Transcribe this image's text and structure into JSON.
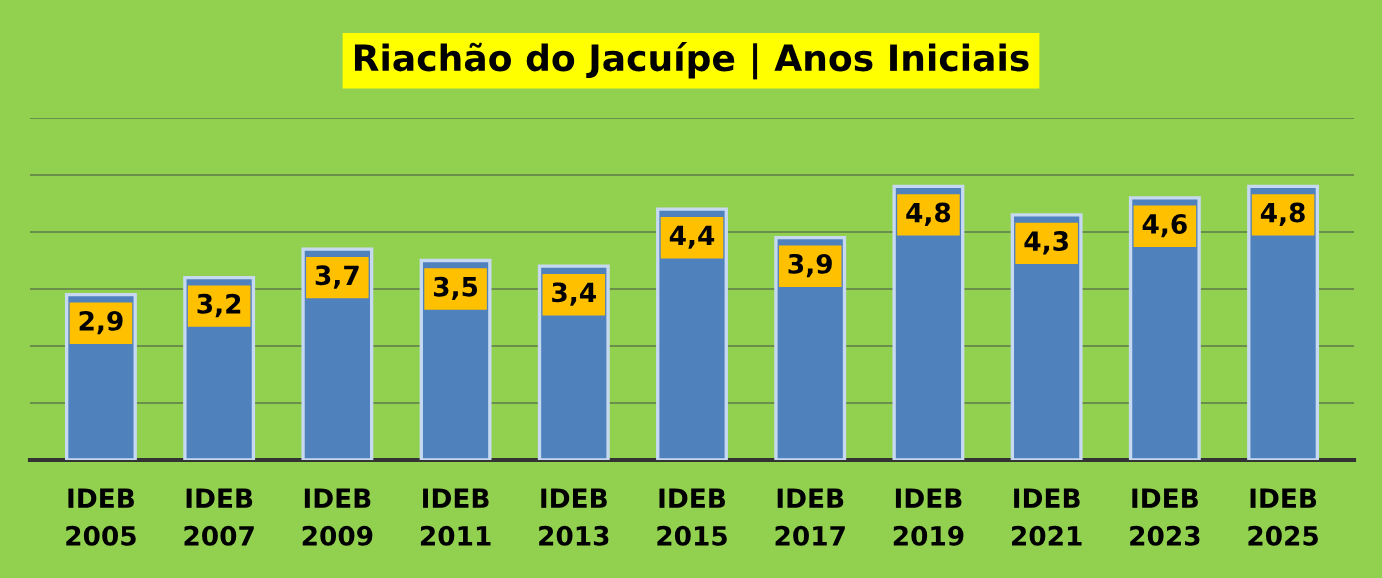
{
  "chart_data": {
    "type": "bar",
    "title": "Riachão do Jacuípe | Anos Iniciais",
    "categories": [
      "IDEB\n2005",
      "IDEB\n2007",
      "IDEB\n2009",
      "IDEB\n2011",
      "IDEB\n2013",
      "IDEB\n2015",
      "IDEB\n2017",
      "IDEB\n2019",
      "IDEB\n2021",
      "IDEB\n2023",
      "IDEB\n2025"
    ],
    "values": [
      2.9,
      3.2,
      3.7,
      3.5,
      3.4,
      4.4,
      3.9,
      4.8,
      4.3,
      4.6,
      4.8
    ],
    "value_labels": [
      "2,9",
      "3,2",
      "3,7",
      "3,5",
      "3,4",
      "4,4",
      "3,9",
      "4,8",
      "4,3",
      "4,6",
      "4,8"
    ],
    "color": "#4f81bd",
    "ylim": [
      0,
      6
    ],
    "yticks": [
      {
        "value": 0,
        "label": null
      },
      {
        "value": 1,
        "label": null
      },
      {
        "value": 2,
        "label": null
      },
      {
        "value": 3,
        "label": null
      },
      {
        "value": 4,
        "label": null
      },
      {
        "value": 5,
        "label": null
      },
      {
        "value": 6,
        "label": null
      }
    ],
    "tick_labels": "x",
    "grid": "y"
  }
}
